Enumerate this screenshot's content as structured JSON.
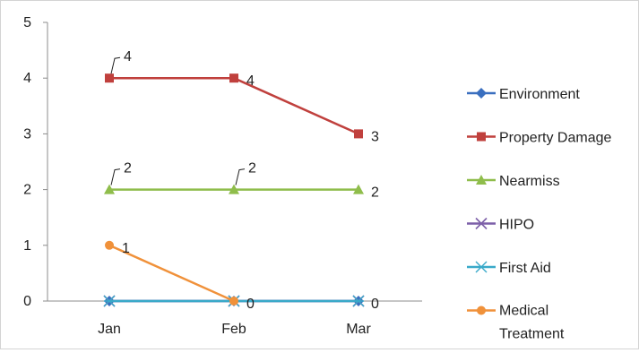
{
  "chart_data": {
    "type": "line",
    "categories": [
      "Jan",
      "Feb",
      "Mar"
    ],
    "ylim": [
      0,
      5
    ],
    "yticks": [
      "0",
      "1",
      "2",
      "3",
      "4",
      "5"
    ],
    "grid": false,
    "legend_position": "right",
    "series": [
      {
        "name": "Environment",
        "color": "#3a6fbf",
        "marker": "diamond",
        "values": [
          0,
          0,
          0
        ],
        "labels": []
      },
      {
        "name": "Property Damage",
        "color": "#c0403d",
        "marker": "square",
        "values": [
          4,
          4,
          3
        ],
        "labels": [
          "4",
          "4",
          "3"
        ]
      },
      {
        "name": "Nearmiss",
        "color": "#8fbd4b",
        "marker": "triangle",
        "values": [
          2,
          2,
          2
        ],
        "labels": [
          "2",
          "2",
          "2"
        ]
      },
      {
        "name": "HIPO",
        "color": "#7c5fa8",
        "marker": "x",
        "values": [
          0,
          0,
          0
        ],
        "labels": []
      },
      {
        "name": "First Aid",
        "color": "#39a9c9",
        "marker": "asterisk",
        "values": [
          0,
          0,
          0
        ],
        "labels": []
      },
      {
        "name": "Medical Treatment",
        "color": "#f0913a",
        "marker": "circle",
        "values": [
          1,
          0,
          null
        ],
        "labels": [
          "1",
          "0",
          ""
        ]
      }
    ],
    "extra_labels": [
      {
        "text": "0",
        "category": "Mar",
        "value": 0
      }
    ]
  }
}
